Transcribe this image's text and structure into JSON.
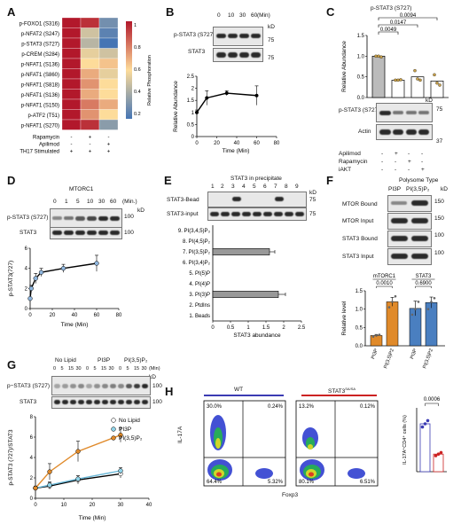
{
  "panels": {
    "A": {
      "letter": "A",
      "rows": [
        "p-FOXO1 (S316)",
        "p-NFAT2 (S247)",
        "p-STAT3 (S727)",
        "p-CREM (S284)",
        "p-NFAT1 (S136)",
        "p-NFAT1 (S860)",
        "p-NFAT1 (S818)",
        "p-NFAT1 (S136)",
        "p-NFAT1 (S150)",
        "p-ATF2 (T51)",
        "p-NFAT1 (S270)"
      ],
      "conditions": [
        {
          "label": "Rapamycin",
          "marks": [
            "-",
            "+",
            "-"
          ]
        },
        {
          "label": "Apilimod",
          "marks": [
            "-",
            "-",
            "+"
          ]
        },
        {
          "label": "TH17 Stimulated",
          "marks": [
            "+",
            "+",
            "+"
          ]
        }
      ],
      "colorbar_label": "Relative Phosphoration",
      "colorbar_ticks": [
        "1",
        "0.8",
        "0.6",
        "0.4",
        "0.2"
      ],
      "colors": {
        "high": "#b2182b",
        "mid": "#fddc9a",
        "low": "#4575b4"
      }
    },
    "B": {
      "letter": "B",
      "time_labels": [
        "0",
        "10",
        "30",
        "60"
      ],
      "time_unit": "(Min)",
      "blot1": "p-STAT3  (S727)",
      "blot2": "STAT3",
      "kd": "kD",
      "mw": "75",
      "ylabel": "Relative Abundance",
      "xlabel": "Time (Min)"
    },
    "C": {
      "letter": "C",
      "title": "p-STAT3   (S727)",
      "pvals": [
        "0.0094",
        "0.0147",
        "0.0049"
      ],
      "ylabel": "Relative Abundance",
      "blot1": "p-STAT3 (S727)",
      "blot2": "Actin",
      "mw1": "75",
      "mw2": "37",
      "kd": "kD",
      "conditions": [
        {
          "label": "Apilimod",
          "marks": [
            "-",
            "+",
            "-",
            "-"
          ]
        },
        {
          "label": "Rapamycin",
          "marks": [
            "-",
            "-",
            "+",
            "-"
          ]
        },
        {
          "label": "iAKT",
          "marks": [
            "-",
            "-",
            "-",
            "+"
          ]
        }
      ]
    },
    "D": {
      "letter": "D",
      "title": "MTORC1",
      "time_labels": [
        "0",
        "1",
        "5",
        "10",
        "30",
        "60"
      ],
      "time_unit": "(Min.)",
      "blot1": "p-STAT3 (S727)",
      "blot2": "STAT3",
      "mw": "100",
      "kd": "kD",
      "ylabel": "p-STAT3(727)",
      "xlabel": "Time (Min)"
    },
    "E": {
      "letter": "E",
      "title": "STAT3 in precipitate",
      "lanes": [
        "1",
        "2",
        "3",
        "4",
        "5",
        "6",
        "7",
        "8",
        "9"
      ],
      "blot1": "STAT3-Bead",
      "blot2": "STAT3-input",
      "mw": "75",
      "kd": "kD",
      "lipids": [
        "9. PI(3,4,5)P₃",
        "8. PI(4,5)P₂",
        "7. PI(3,5)P₂",
        "6. PI(3,4)P₂",
        "5. PI(5)P",
        "4. PI(4)P",
        "3. PI(3)P",
        "2. PtdIns",
        "1. Beads"
      ],
      "xlabel": "STAT3 abundance"
    },
    "F": {
      "letter": "F",
      "title": "Polysome Type",
      "col1": "PI3P",
      "col2": "PI(3,5)P₂",
      "kd": "kD",
      "blots": [
        {
          "label": "MTOR Bound",
          "mw": "150"
        },
        {
          "label": "MTOR Input",
          "mw": "150"
        },
        {
          "label": "STAT3 Bound",
          "mw": "100"
        },
        {
          "label": "STAT3 Input",
          "mw": "100"
        }
      ],
      "groups": [
        "mTORC1",
        "STAT3"
      ],
      "pvals": [
        "0.0010",
        "0.6900"
      ],
      "ylabel": "Relative level",
      "xticks": [
        "PI3P",
        "PI(3,5)P2",
        "PI3P",
        "PI(3,5)P2"
      ]
    },
    "G": {
      "letter": "G",
      "group_labels": [
        "No Lipid",
        "PI3P",
        "PI(3,5)P₂"
      ],
      "time_labels": [
        "0",
        "5",
        "15",
        "30"
      ],
      "time_unit": "(Min)",
      "blot1": "p−STAT3 (S727)",
      "blot2": "STAT3",
      "mw": "100",
      "kd": "kD",
      "legend": [
        "No Lipid",
        "PI3P",
        "PI(3,5)P₂"
      ],
      "ylabel": "p-STAT3 (727)/STAT3",
      "xlabel": "Time (Min)"
    },
    "H": {
      "letter": "H",
      "wt_label": "WT",
      "ko_label": "STAT3",
      "ko_sup": "SA/SA",
      "ylabel": "IL-17A",
      "xlabel": "Foxp3",
      "wt_quadrants": [
        "30.0%",
        "0.24%",
        "64.4%",
        "5.32%"
      ],
      "ko_quadrants": [
        "13.2%",
        "0.12%",
        "80.1%",
        "6.51%"
      ],
      "bar_ylabel": "IL-17A⁺CD4⁺ cells (%)",
      "pval": "0.0006",
      "colors": {
        "wt": "#3b3bb3",
        "ko": "#cc2222"
      }
    }
  },
  "chart_data": [
    {
      "id": "A",
      "type": "heatmap",
      "rows": [
        "p-FOXO1 (S316)",
        "p-NFAT2 (S247)",
        "p-STAT3 (S727)",
        "p-CREM (S284)",
        "p-NFAT1 (S136)",
        "p-NFAT1 (S860)",
        "p-NFAT1 (S818)",
        "p-NFAT1 (S136)",
        "p-NFAT1 (S150)",
        "p-ATF2 (T51)",
        "p-NFAT1 (S270)"
      ],
      "columns": [
        "TH17",
        "TH17+Rapamycin",
        "TH17+Apilimod"
      ],
      "values": [
        [
          1,
          0.95,
          0.3
        ],
        [
          1,
          0.5,
          0.25
        ],
        [
          1,
          0.45,
          0.15
        ],
        [
          1,
          0.55,
          0.5
        ],
        [
          1,
          0.6,
          0.65
        ],
        [
          1,
          0.7,
          0.55
        ],
        [
          1,
          0.75,
          0.6
        ],
        [
          1,
          0.7,
          0.6
        ],
        [
          1,
          0.8,
          0.7
        ],
        [
          1,
          0.75,
          0.6
        ],
        [
          1,
          0.95,
          0.35
        ]
      ],
      "colorbar_range": [
        0.2,
        1
      ]
    },
    {
      "id": "B",
      "type": "line",
      "x": [
        0,
        10,
        30,
        60
      ],
      "y": [
        1,
        1.6,
        1.8,
        1.7
      ],
      "err": [
        0.1,
        0.3,
        0.1,
        0.4
      ],
      "xlim": [
        0,
        80
      ],
      "ylim": [
        0,
        2.5
      ],
      "xticks": [
        0,
        20,
        40,
        60,
        80
      ],
      "yticks": [
        0,
        0.5,
        1,
        1.5,
        2,
        2.5
      ]
    },
    {
      "id": "C",
      "type": "bar",
      "categories": [
        "Control",
        "Apilimod",
        "Rapamycin",
        "iAKT"
      ],
      "values": [
        1.0,
        0.42,
        0.5,
        0.4
      ],
      "points": [
        [
          1.0,
          1.0,
          0.98
        ],
        [
          0.42,
          0.42,
          0.43
        ],
        [
          0.65,
          0.45,
          0.42
        ],
        [
          0.55,
          0.35,
          0.3
        ]
      ],
      "ylim": [
        0,
        1.5
      ],
      "yticks": [
        0,
        0.5,
        1.0,
        1.5
      ]
    },
    {
      "id": "D",
      "type": "line",
      "x": [
        0,
        1,
        5,
        10,
        30,
        60
      ],
      "y": [
        1.0,
        2.0,
        3.0,
        3.6,
        4.0,
        4.5
      ],
      "err": [
        0.1,
        0.3,
        0.5,
        0.4,
        0.4,
        0.8
      ],
      "xlim": [
        0,
        80
      ],
      "ylim": [
        0,
        6
      ],
      "xticks": [
        0,
        20,
        40,
        60,
        80
      ],
      "yticks": [
        0,
        2,
        4,
        6
      ]
    },
    {
      "id": "E",
      "type": "bar",
      "orientation": "horizontal",
      "categories": [
        "9. PI(3,4,5)P₃",
        "8. PI(4,5)P₂",
        "7. PI(3,5)P₂",
        "6. PI(3,4)P₂",
        "5. PI(5)P",
        "4. PI(4)P",
        "3. PI(3)P",
        "2. PtdIns",
        "1. Beads"
      ],
      "values": [
        0,
        0,
        1.6,
        0,
        0,
        0,
        1.85,
        0,
        0
      ],
      "err": [
        0,
        0,
        0.15,
        0,
        0,
        0,
        0.2,
        0,
        0
      ],
      "xlim": [
        0,
        2.5
      ],
      "xticks": [
        0,
        0.5,
        1,
        1.5,
        2,
        2.5
      ]
    },
    {
      "id": "F",
      "type": "bar",
      "categories": [
        "PI3P",
        "PI(3,5)P2",
        "PI3P",
        "PI(3,5)P2"
      ],
      "groups": [
        "mTORC1",
        "mTORC1",
        "STAT3",
        "STAT3"
      ],
      "values": [
        0.28,
        1.2,
        1.02,
        1.18
      ],
      "err": [
        0.03,
        0.12,
        0.2,
        0.15
      ],
      "points": [
        [
          0.25,
          0.28,
          0.3
        ],
        [
          1.05,
          1.2,
          1.35
        ],
        [
          0.85,
          1.0,
          1.2
        ],
        [
          1.0,
          1.2,
          1.3
        ]
      ],
      "ylim": [
        0,
        1.5
      ],
      "yticks": [
        0,
        0.5,
        1.0,
        1.5
      ]
    },
    {
      "id": "G",
      "type": "line",
      "series": [
        {
          "name": "No Lipid",
          "x": [
            0,
            5,
            15,
            30
          ],
          "y": [
            1,
            1.2,
            1.8,
            2.4
          ],
          "err": [
            0.1,
            0.3,
            0.4,
            0.4
          ]
        },
        {
          "name": "PI3P",
          "x": [
            0,
            5,
            15,
            30
          ],
          "y": [
            1,
            1.3,
            1.9,
            2.7
          ],
          "err": [
            0.1,
            0.3,
            0.3,
            0.3
          ]
        },
        {
          "name": "PI(3,5)P₂",
          "x": [
            0,
            5,
            15,
            30
          ],
          "y": [
            1,
            2.6,
            4.6,
            6.2
          ],
          "err": [
            0.2,
            0.8,
            1.0,
            0.7
          ]
        }
      ],
      "xlim": [
        0,
        40
      ],
      "ylim": [
        0,
        8
      ],
      "xticks": [
        0,
        10,
        20,
        30,
        40
      ],
      "yticks": [
        0,
        2,
        4,
        6,
        8
      ]
    },
    {
      "id": "H",
      "type": "bar",
      "categories": [
        "WT",
        "STAT3SA/SA"
      ],
      "values": [
        30,
        11
      ],
      "points": [
        [
          28,
          30,
          32
        ],
        [
          10,
          11,
          12
        ]
      ],
      "ylim": [
        0,
        40
      ]
    }
  ]
}
